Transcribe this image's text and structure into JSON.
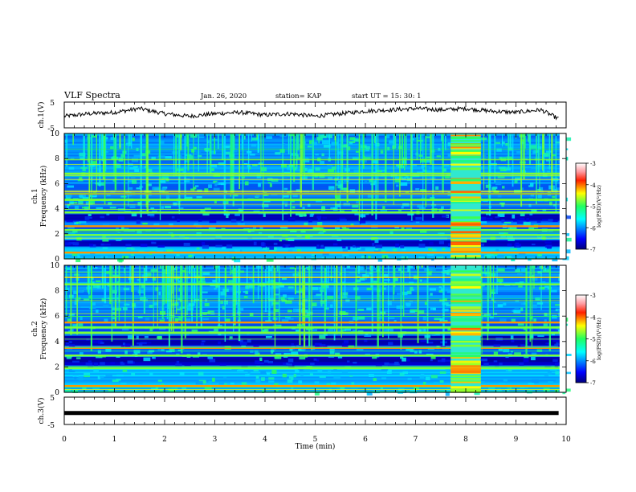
{
  "header": {
    "title": "VLF Spectra",
    "date": "Jan. 26, 2020",
    "station": "station= KAP",
    "start": "start UT =  15: 30: 1"
  },
  "chart_data": [
    {
      "type": "line",
      "panel": "ch1-voltage",
      "ylabel": "ch.1(V)",
      "ylim": [
        -5,
        5
      ],
      "yticks": [
        "5",
        "-5"
      ],
      "x": [
        0,
        0.5,
        1,
        1.5,
        2,
        2.5,
        3,
        3.5,
        4,
        4.5,
        5,
        5.5,
        6,
        6.5,
        7,
        7.5,
        8,
        8.5,
        9,
        9.5,
        9.85
      ],
      "y": [
        -0.5,
        0.5,
        1.0,
        2.5,
        0.5,
        -0.5,
        0.5,
        1.0,
        0.0,
        0.5,
        -0.5,
        0.5,
        1.5,
        2.0,
        2.5,
        2.0,
        2.5,
        1.5,
        1.0,
        2.0,
        -1.5
      ]
    },
    {
      "type": "heatmap",
      "panel": "ch1-spectrum",
      "ylabel": "ch.1 Frequency (kHz)",
      "xlim": [
        0,
        10
      ],
      "ylim": [
        0,
        10
      ],
      "yticks": [
        "0",
        "2",
        "4",
        "6",
        "8",
        "10"
      ],
      "colorbar": {
        "label": "log(PSD)(V²/Hz)",
        "ticks": [
          "-3",
          "-4",
          "-5",
          "-6",
          "-7"
        ],
        "range": [
          -7,
          -3
        ]
      },
      "bright_lines_khz": [
        0.5,
        1.9,
        2.3,
        2.6,
        3.7,
        4.7,
        5.2,
        6.8
      ],
      "dark_bands_khz": [
        [
          3.0,
          3.5
        ],
        [
          1.0,
          1.5
        ]
      ],
      "burst_interval_min": [
        7.7,
        8.3
      ]
    },
    {
      "type": "heatmap",
      "panel": "ch2-spectrum",
      "ylabel": "ch.2 Frequency (kHz)",
      "xlim": [
        0,
        10
      ],
      "ylim": [
        0,
        10
      ],
      "yticks": [
        "0",
        "2",
        "4",
        "6",
        "8",
        "10"
      ],
      "colorbar": {
        "label": "log(PSD)(V²/Hz)",
        "ticks": [
          "-3",
          "-4",
          "-5",
          "-6",
          "-7"
        ],
        "range": [
          -7,
          -3
        ]
      },
      "bright_lines_khz": [
        0.5,
        1.9,
        2.9,
        3.5,
        4.7,
        5.1,
        5.5,
        8.5
      ],
      "dark_bands_khz": [
        [
          2.1,
          2.7
        ],
        [
          3.7,
          4.4
        ]
      ],
      "burst_interval_min": [
        7.7,
        8.3
      ]
    },
    {
      "type": "line",
      "panel": "ch3-voltage",
      "ylabel": "ch.3(V)",
      "xlabel": "Time (min)",
      "ylim": [
        -5,
        5
      ],
      "yticks": [
        "5",
        "-5"
      ],
      "xticks": [
        "0",
        "1",
        "2",
        "3",
        "4",
        "5",
        "6",
        "7",
        "8",
        "9",
        "10"
      ],
      "x": [
        0,
        9.85
      ],
      "y": [
        -0.8,
        -0.8
      ]
    }
  ]
}
